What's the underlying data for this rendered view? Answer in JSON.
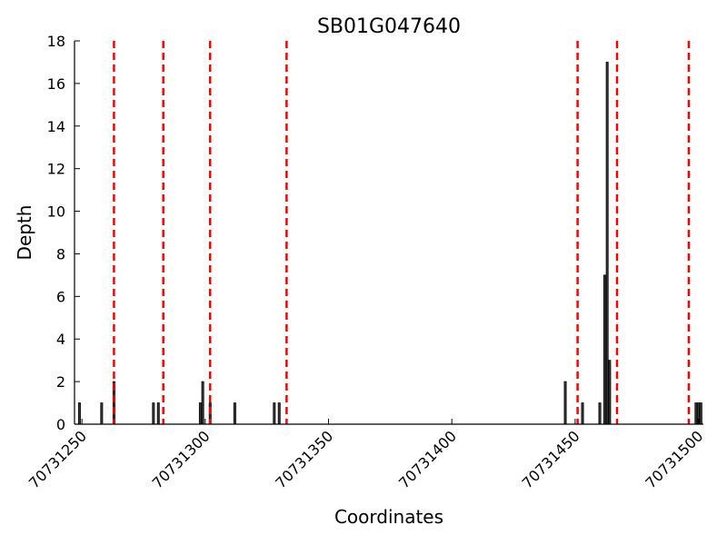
{
  "chart_data": {
    "type": "bar",
    "title": "SB01G047640",
    "xlabel": "Coordinates",
    "ylabel": "Depth",
    "xlim": [
      70731247,
      70731502
    ],
    "ylim": [
      0,
      18
    ],
    "xticks": [
      70731250,
      70731300,
      70731350,
      70731400,
      70731450,
      70731500
    ],
    "yticks": [
      0,
      2,
      4,
      6,
      8,
      10,
      12,
      14,
      16,
      18
    ],
    "grid": false,
    "bar_color": "#3a3a3a",
    "line_color": "#ff0000",
    "bars": [
      {
        "x": 70731249,
        "y": 1
      },
      {
        "x": 70731258,
        "y": 1
      },
      {
        "x": 70731263,
        "y": 2
      },
      {
        "x": 70731279,
        "y": 1
      },
      {
        "x": 70731281,
        "y": 1
      },
      {
        "x": 70731298,
        "y": 1
      },
      {
        "x": 70731299,
        "y": 2
      },
      {
        "x": 70731302,
        "y": 1
      },
      {
        "x": 70731312,
        "y": 1
      },
      {
        "x": 70731328,
        "y": 1
      },
      {
        "x": 70731330,
        "y": 1
      },
      {
        "x": 70731446,
        "y": 2
      },
      {
        "x": 70731453,
        "y": 1
      },
      {
        "x": 70731460,
        "y": 1
      },
      {
        "x": 70731462,
        "y": 7
      },
      {
        "x": 70731463,
        "y": 17
      },
      {
        "x": 70731464,
        "y": 3
      },
      {
        "x": 70731499,
        "y": 1
      },
      {
        "x": 70731500,
        "y": 1
      },
      {
        "x": 70731501,
        "y": 1
      }
    ],
    "vertical_lines": [
      70731263,
      70731283,
      70731302,
      70731333,
      70731451,
      70731467,
      70731504
    ]
  }
}
